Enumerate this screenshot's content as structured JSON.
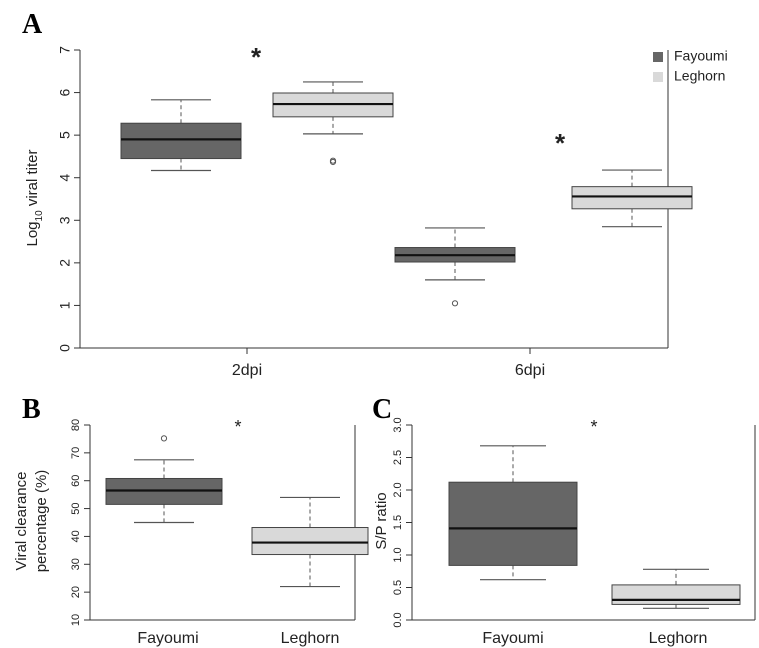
{
  "chart_data": [
    {
      "panel": "A",
      "type": "boxplot",
      "ylabel_main": "Log",
      "ylabel_sub": "10",
      "ylabel_rest": " viral titer",
      "ylim": [
        0,
        7
      ],
      "yticks": [
        "0",
        "1",
        "2",
        "3",
        "4",
        "5",
        "6",
        "7"
      ],
      "categories": [
        "2dpi",
        "6dpi"
      ],
      "legend": {
        "placement": "top-right",
        "entries": [
          {
            "name": "Fayoumi",
            "color": "#666666"
          },
          {
            "name": "Leghorn",
            "color": "#d9d9d9"
          }
        ]
      },
      "series": [
        {
          "name": "Fayoumi",
          "color": "#666666",
          "boxes": [
            {
              "category": "2dpi",
              "min": 4.17,
              "q1": 4.45,
              "median": 4.9,
              "q3": 5.28,
              "max": 5.83,
              "outliers": []
            },
            {
              "category": "6dpi",
              "min": 1.6,
              "q1": 2.02,
              "median": 2.18,
              "q3": 2.36,
              "max": 2.82,
              "outliers": [
                1.05
              ]
            }
          ]
        },
        {
          "name": "Leghorn",
          "color": "#d9d9d9",
          "boxes": [
            {
              "category": "2dpi",
              "min": 5.03,
              "q1": 5.43,
              "median": 5.73,
              "q3": 5.99,
              "max": 6.25,
              "outliers": [
                4.37,
                4.4
              ]
            },
            {
              "category": "6dpi",
              "min": 2.85,
              "q1": 3.27,
              "median": 3.56,
              "q3": 3.79,
              "max": 4.18,
              "outliers": []
            }
          ]
        }
      ],
      "annotations": [
        "*",
        "*"
      ]
    },
    {
      "panel": "B",
      "type": "boxplot",
      "ylabel_line1": "Viral clearance",
      "ylabel_line2": "percentage (%)",
      "ylim": [
        10,
        80
      ],
      "yticks": [
        "10",
        "20",
        "30",
        "40",
        "50",
        "60",
        "70",
        "80"
      ],
      "categories": [
        "Fayoumi",
        "Leghorn"
      ],
      "boxes": [
        {
          "category": "Fayoumi",
          "color": "#666666",
          "min": 45.0,
          "q1": 51.5,
          "median": 56.5,
          "q3": 60.8,
          "max": 67.5,
          "outliers": [
            75.2
          ]
        },
        {
          "category": "Leghorn",
          "color": "#d9d9d9",
          "min": 22.0,
          "q1": 33.5,
          "median": 37.8,
          "q3": 43.2,
          "max": 54.0,
          "outliers": []
        }
      ],
      "annotations": [
        "*"
      ]
    },
    {
      "panel": "C",
      "type": "boxplot",
      "ylabel": "S/P ratio",
      "ylim": [
        0,
        3
      ],
      "yticks": [
        "0.0",
        "0.5",
        "1.0",
        "1.5",
        "2.0",
        "2.5",
        "3.0"
      ],
      "categories": [
        "Fayoumi",
        "Leghorn"
      ],
      "boxes": [
        {
          "category": "Fayoumi",
          "color": "#666666",
          "min": 0.62,
          "q1": 0.84,
          "median": 1.41,
          "q3": 2.12,
          "max": 2.68,
          "outliers": []
        },
        {
          "category": "Leghorn",
          "color": "#d9d9d9",
          "min": 0.18,
          "q1": 0.24,
          "median": 0.31,
          "q3": 0.54,
          "max": 0.78,
          "outliers": []
        }
      ],
      "annotations": [
        "*"
      ]
    }
  ]
}
